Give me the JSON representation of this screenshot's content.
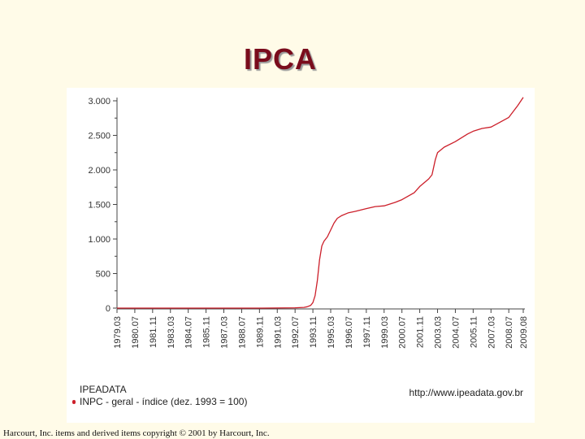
{
  "slide": {
    "title": "IPCA",
    "copyright": "Harcourt, Inc. items and derived items copyright © 2001 by Harcourt, Inc."
  },
  "legend": {
    "source": "IPEADATA",
    "series_label": "INPC - geral - índice (dez. 1993 = 100)",
    "url": "http://www.ipeadata.gov.br"
  },
  "chart_data": {
    "type": "line",
    "title": "",
    "xlabel": "",
    "ylabel": "",
    "ylim": [
      0,
      3000
    ],
    "yticks": [
      0,
      500,
      1000,
      1500,
      2000,
      2500,
      3000
    ],
    "ytick_labels": [
      "0",
      "500",
      "1.000",
      "1.500",
      "2.000",
      "2.500",
      "3.000"
    ],
    "xtick_labels": [
      "1979.03",
      "1980.07",
      "1981.11",
      "1983.03",
      "1984.07",
      "1985.11",
      "1987.03",
      "1988.07",
      "1989.11",
      "1991.03",
      "1992.07",
      "1993.11",
      "1995.03",
      "1996.07",
      "1997.11",
      "1999.03",
      "2000.07",
      "2001.11",
      "2003.03",
      "2004.07",
      "2005.11",
      "2007.03",
      "2008.07",
      "2009.08"
    ],
    "grid": false,
    "line_color": "#cc1f2a",
    "series": [
      {
        "name": "INPC - geral - índice (dez. 1993 = 100)",
        "x": [
          "1979.03",
          "1990.01",
          "1992.07",
          "1993.03",
          "1993.06",
          "1993.09",
          "1993.11",
          "1994.01",
          "1994.03",
          "1994.05",
          "1994.07",
          "1994.09",
          "1994.12",
          "1995.03",
          "1995.06",
          "1995.09",
          "1996.01",
          "1996.07",
          "1997.01",
          "1997.11",
          "1998.07",
          "1999.03",
          "2000.01",
          "2000.07",
          "2001.06",
          "2001.11",
          "2002.07",
          "2002.10",
          "2003.01",
          "2003.03",
          "2003.09",
          "2004.07",
          "2005.06",
          "2005.11",
          "2006.07",
          "2007.03",
          "2007.11",
          "2008.07",
          "2009.03",
          "2009.08"
        ],
        "values": [
          0,
          0,
          5,
          10,
          20,
          40,
          80,
          180,
          400,
          700,
          900,
          970,
          1030,
          1130,
          1230,
          1300,
          1340,
          1380,
          1400,
          1440,
          1470,
          1480,
          1530,
          1570,
          1670,
          1760,
          1870,
          1930,
          2150,
          2250,
          2330,
          2410,
          2520,
          2560,
          2600,
          2620,
          2690,
          2760,
          2930,
          3050
        ]
      }
    ]
  }
}
